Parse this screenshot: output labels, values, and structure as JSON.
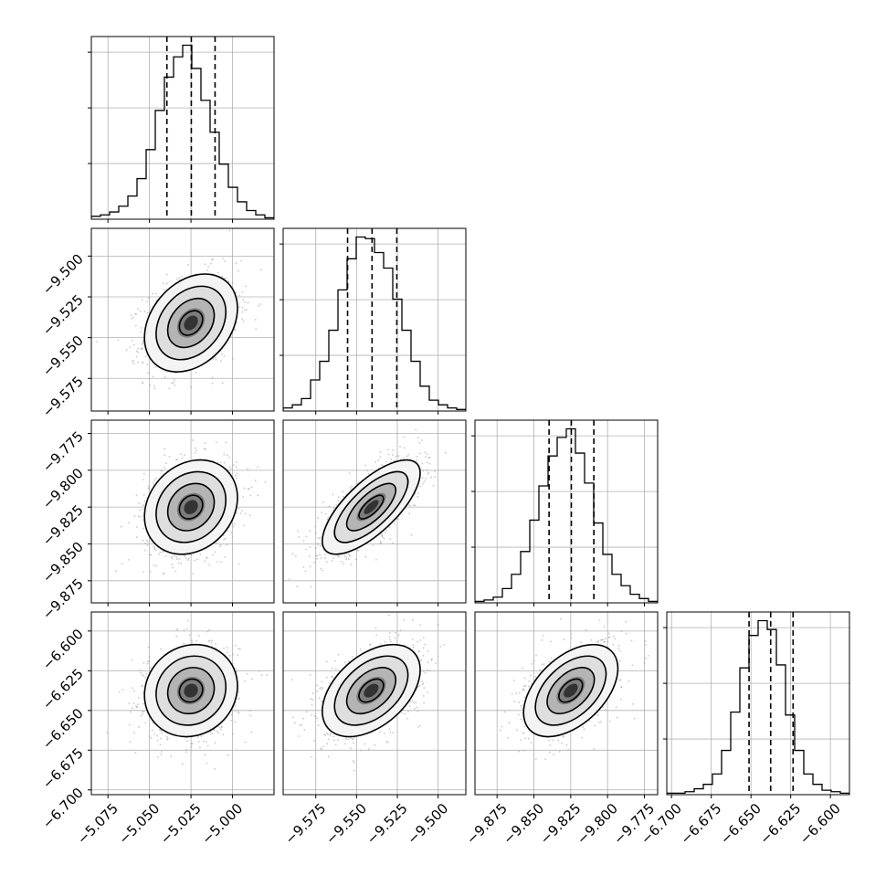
{
  "chart_data": {
    "type": "corner",
    "colors": {
      "line": "#000000",
      "grid": "#b0b0b0",
      "scatter": "#9a9a9a",
      "background": "#ffffff"
    },
    "grid": true,
    "params": [
      {
        "range": [
          -5.085,
          -4.975
        ],
        "ticks": [
          -5.075,
          -5.05,
          -5.025,
          -5.0
        ],
        "tick_labels": [
          "−5.075",
          "−5.050",
          "−5.025",
          "−5.000"
        ],
        "quantiles": [
          -5.0395,
          -5.0248,
          -5.0105
        ],
        "mean": -5.025,
        "sd": 0.014,
        "hist": [
          2,
          3,
          5,
          9,
          16,
          28,
          48,
          75,
          98,
          112,
          120,
          104,
          82,
          60,
          38,
          22,
          12,
          6,
          3,
          1
        ]
      },
      {
        "range": [
          -9.595,
          -9.483
        ],
        "ticks": [
          -9.575,
          -9.55,
          -9.525,
          -9.5
        ],
        "tick_labels": [
          "−9.575",
          "−9.550",
          "−9.525",
          "−9.500"
        ],
        "quantiles": [
          -9.5555,
          -9.5405,
          -9.5253
        ],
        "mean": -9.541,
        "sd": 0.015,
        "hist": [
          2,
          4,
          8,
          20,
          32,
          52,
          78,
          98,
          112,
          111,
          102,
          92,
          72,
          52,
          32,
          16,
          7,
          4,
          2,
          1
        ]
      },
      {
        "range": [
          -9.89,
          -9.766
        ],
        "ticks": [
          -9.875,
          -9.85,
          -9.825,
          -9.8,
          -9.775
        ],
        "tick_labels": [
          "−9.875",
          "−9.850",
          "−9.825",
          "−9.800",
          "−9.775"
        ],
        "quantiles": [
          -9.8397,
          -9.8246,
          -9.8093
        ],
        "mean": -9.825,
        "sd": 0.016,
        "hist": [
          1,
          2,
          4,
          10,
          20,
          36,
          58,
          82,
          103,
          116,
          122,
          105,
          84,
          56,
          34,
          20,
          12,
          6,
          3,
          1
        ]
      },
      {
        "range": [
          -6.703,
          -6.588
        ],
        "ticks": [
          -6.7,
          -6.675,
          -6.65,
          -6.625,
          -6.6
        ],
        "tick_labels": [
          "−6.700",
          "−6.675",
          "−6.650",
          "−6.625",
          "−6.600"
        ],
        "quantiles": [
          -6.6512,
          -6.6376,
          -6.6235
        ],
        "mean": -6.6375,
        "sd": 0.0145,
        "hist": [
          1,
          1,
          2,
          4,
          7,
          14,
          30,
          56,
          86,
          108,
          118,
          112,
          88,
          54,
          30,
          14,
          7,
          3,
          2,
          1
        ]
      }
    ],
    "correlations": [
      [
        1.0,
        0.3,
        0.2,
        0.1
      ],
      [
        0.3,
        1.0,
        0.72,
        0.45
      ],
      [
        0.2,
        0.72,
        1.0,
        0.48
      ],
      [
        0.1,
        0.45,
        0.48,
        1.0
      ]
    ],
    "contour_levels_sigma": [
      0.5,
      1.0,
      1.5,
      2.0
    ]
  }
}
